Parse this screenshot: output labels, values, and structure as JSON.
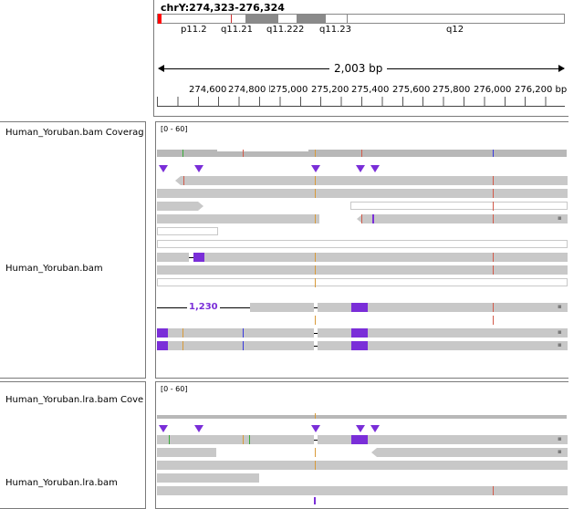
{
  "locus": "chrY:274,323-276,324",
  "bands": [
    "p11.2",
    "q11.21",
    "q11.222",
    "q11.23",
    "q12"
  ],
  "span_label": "2,003 bp",
  "ruler_ticks": [
    "274,600 bp",
    "274,800 bp",
    "275,000 bp",
    "275,200 bp",
    "275,400 bp",
    "275,600 bp",
    "275,800 bp",
    "276,000 bp",
    "276,200 bp"
  ],
  "tracks": {
    "cov1_name": "Human_Yoruban.bam Coverage",
    "cov1_range": "[0 - 60]",
    "bam1_name": "Human_Yoruban.bam",
    "deletion_label": "1,230",
    "cov2_name": "Human_Yoruban.lra.bam Coverage",
    "cov2_range": "[0 - 60]",
    "bam2_name": "Human_Yoruban.lra.bam"
  },
  "colors": {
    "insertion": "#7a2ed8",
    "read": "#c8c8c8",
    "mismatch_orange": "#d89a3a",
    "mismatch_red": "#d25a4a",
    "ideogram_highlight": "#ff0000"
  }
}
